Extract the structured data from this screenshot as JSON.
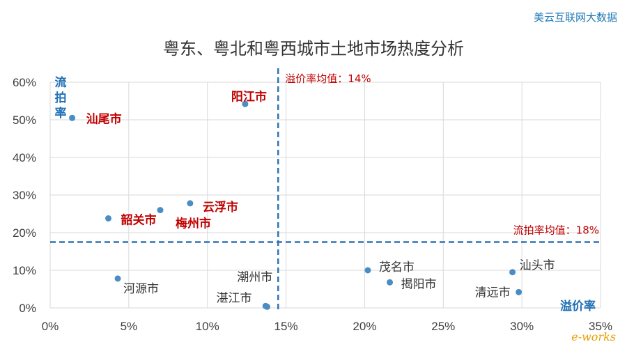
{
  "brand": "美云互联网大数据",
  "watermark": "e-works",
  "chart_data": {
    "type": "scatter",
    "title": "粤东、粤北和粤西城市土地市场热度分析",
    "xlabel": "溢价率",
    "ylabel": "流拍率",
    "xlim": [
      0,
      35
    ],
    "ylim": [
      0,
      60
    ],
    "x_ticks": [
      "0%",
      "5%",
      "10%",
      "15%",
      "20%",
      "25%",
      "30%",
      "35%"
    ],
    "y_ticks": [
      "0%",
      "10%",
      "20%",
      "30%",
      "40%",
      "50%",
      "60%"
    ],
    "grid": true,
    "reference_lines": [
      {
        "axis": "x",
        "value": 14.5,
        "label": "溢价率均值：14%"
      },
      {
        "axis": "y",
        "value": 17.5,
        "label": "流拍率均值：18%"
      }
    ],
    "colors": {
      "point": "#4a8cc4",
      "highlight": "#c00000",
      "normal": "#333333",
      "ref": "#2e75b6",
      "axis_label": "#1f6fb5"
    },
    "points": [
      {
        "name": "汕尾市",
        "x": 1.4,
        "y": 50.5,
        "highlight": true
      },
      {
        "name": "阳江市",
        "x": 12.4,
        "y": 54.2,
        "highlight": true
      },
      {
        "name": "韶关市",
        "x": 3.7,
        "y": 23.8,
        "highlight": true
      },
      {
        "name": "梅州市",
        "x": 7.0,
        "y": 26.0,
        "highlight": true
      },
      {
        "name": "云浮市",
        "x": 8.9,
        "y": 27.8,
        "highlight": true
      },
      {
        "name": "河源市",
        "x": 4.3,
        "y": 7.8,
        "highlight": false
      },
      {
        "name": "潮州市",
        "x": 13.7,
        "y": 0.5,
        "highlight": false
      },
      {
        "name": "湛江市",
        "x": 13.8,
        "y": 0.3,
        "highlight": false
      },
      {
        "name": "茂名市",
        "x": 20.2,
        "y": 10.0,
        "highlight": false
      },
      {
        "name": "揭阳市",
        "x": 21.6,
        "y": 6.8,
        "highlight": false
      },
      {
        "name": "汕头市",
        "x": 29.4,
        "y": 9.5,
        "highlight": false
      },
      {
        "name": "清远市",
        "x": 29.8,
        "y": 4.2,
        "highlight": false
      }
    ]
  }
}
